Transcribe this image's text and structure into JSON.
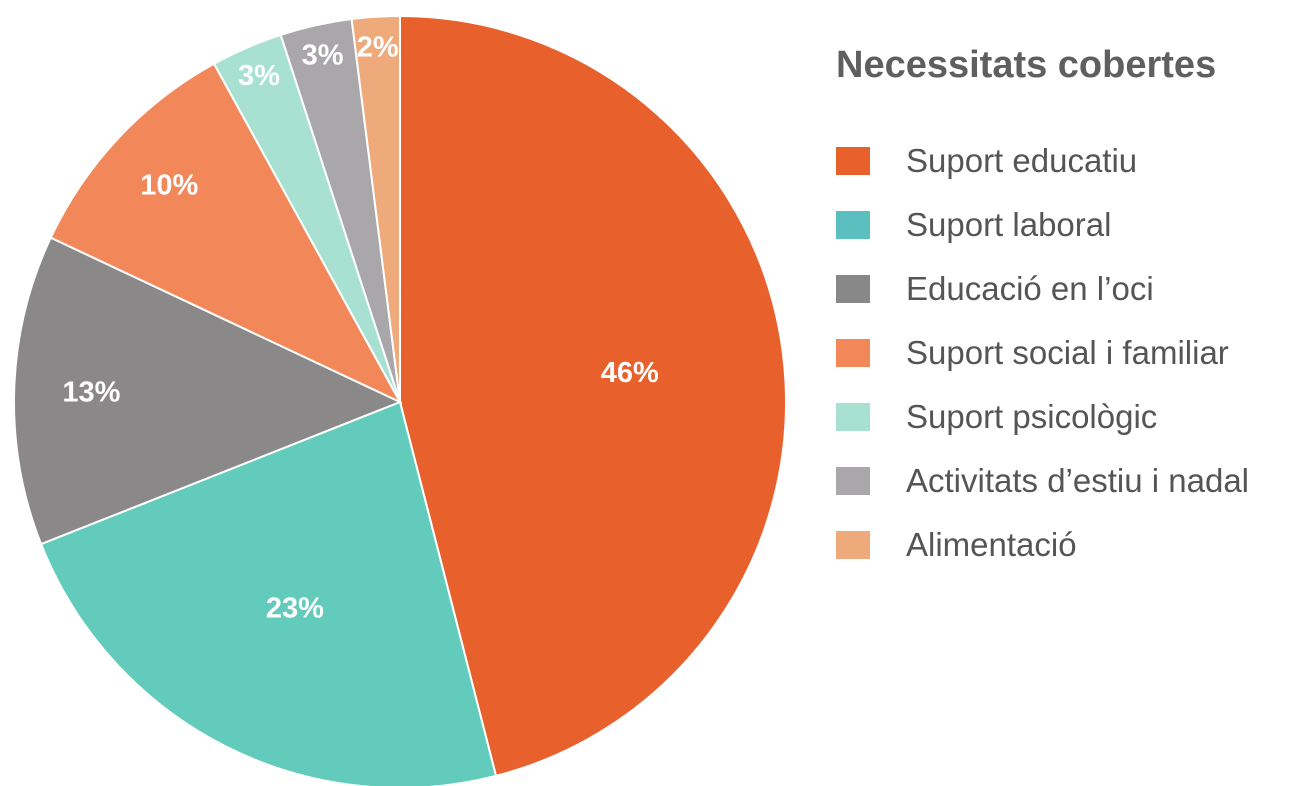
{
  "chart_data": {
    "type": "pie",
    "title": "Necessitats cobertes",
    "start_angle": "12 o'clock",
    "direction": "clockwise",
    "legend_position": "right",
    "slices": [
      {
        "name": "Suport educatiu",
        "value": 46,
        "label": "46%",
        "color": "#E8612C"
      },
      {
        "name": "Suport laboral",
        "value": 23,
        "label": "23%",
        "color": "#62CBBC"
      },
      {
        "name": "Educació en l’oci",
        "value": 13,
        "label": "13%",
        "color": "#8A8888"
      },
      {
        "name": "Suport social i familiar",
        "value": 10,
        "label": "10%",
        "color": "#F2885A"
      },
      {
        "name": "Suport psicològic",
        "value": 3,
        "label": "3%",
        "color": "#A8E1D2"
      },
      {
        "name": "Activitats d’estiu i nadal",
        "value": 3,
        "label": "3%",
        "color": "#A9A7AA"
      },
      {
        "name": "Alimentació",
        "value": 2,
        "label": "2%",
        "color": "#EEAA7B"
      }
    ],
    "legend_swatch_colors": [
      "#E8612C",
      "#5BBFBF",
      "#888888",
      "#F2885A",
      "#A8E1D2",
      "#A9A7AA",
      "#EEAA7B"
    ]
  }
}
